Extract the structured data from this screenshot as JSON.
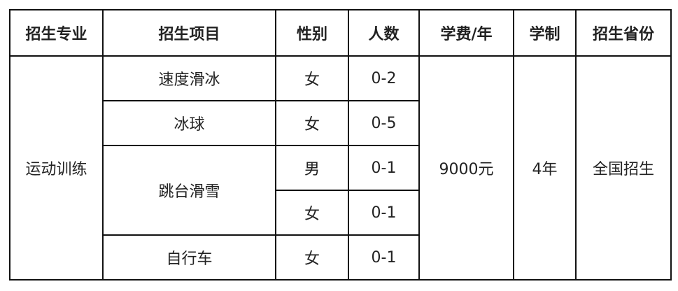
{
  "headers": [
    "招生专业",
    "招生项目",
    "性别",
    "人数",
    "学费/年",
    "学制",
    "招生省份"
  ],
  "major": "运动训练",
  "fee": "9000元",
  "duration": "4年",
  "province": "全国招生",
  "rows": [
    {
      "project": "速度滑冰",
      "gender": "女",
      "count": "0-2"
    },
    {
      "project": "冰球",
      "gender": "女",
      "count": "0-5"
    },
    {
      "project": "跳台滑雪",
      "gender": "男",
      "count": "0-1"
    },
    {
      "project": "跳台滑雪",
      "gender": "女",
      "count": "0-1"
    },
    {
      "project": "自行车",
      "gender": "女",
      "count": "0-1"
    }
  ]
}
